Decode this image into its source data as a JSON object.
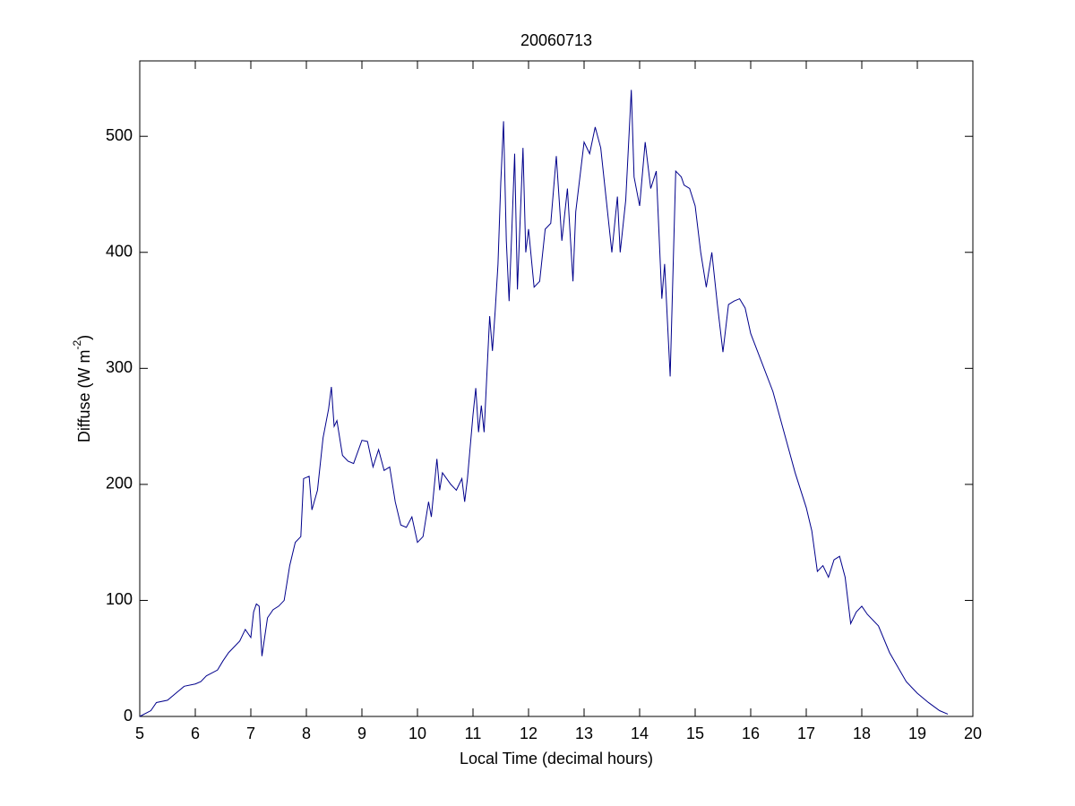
{
  "chart_data": {
    "type": "line",
    "title": "20060713",
    "xlabel": "Local Time (decimal hours)",
    "ylabel": [
      "Diffuse (W m",
      "-2",
      ")"
    ],
    "xlim": [
      5,
      20
    ],
    "ylim": [
      0,
      565
    ],
    "xticks": [
      5,
      6,
      7,
      8,
      9,
      10,
      11,
      12,
      13,
      14,
      15,
      16,
      17,
      18,
      19,
      20
    ],
    "yticks": [
      0,
      100,
      200,
      300,
      400,
      500
    ],
    "grid": false,
    "series": [
      {
        "color": "#00008b",
        "x": [
          5.0,
          5.2,
          5.3,
          5.5,
          5.7,
          5.8,
          6.0,
          6.1,
          6.2,
          6.4,
          6.5,
          6.6,
          6.8,
          6.9,
          7.0,
          7.05,
          7.1,
          7.15,
          7.2,
          7.3,
          7.4,
          7.5,
          7.6,
          7.7,
          7.8,
          7.9,
          7.95,
          8.05,
          8.1,
          8.2,
          8.3,
          8.4,
          8.45,
          8.5,
          8.55,
          8.65,
          8.75,
          8.85,
          9.0,
          9.1,
          9.2,
          9.3,
          9.4,
          9.5,
          9.6,
          9.7,
          9.8,
          9.9,
          10.0,
          10.1,
          10.2,
          10.25,
          10.35,
          10.4,
          10.45,
          10.6,
          10.7,
          10.8,
          10.85,
          10.9,
          11.0,
          11.05,
          11.1,
          11.15,
          11.2,
          11.3,
          11.35,
          11.4,
          11.45,
          11.5,
          11.55,
          11.6,
          11.65,
          11.7,
          11.75,
          11.8,
          11.9,
          11.95,
          12.0,
          12.1,
          12.2,
          12.3,
          12.4,
          12.5,
          12.6,
          12.7,
          12.8,
          12.85,
          13.0,
          13.1,
          13.2,
          13.3,
          13.4,
          13.5,
          13.6,
          13.65,
          13.75,
          13.85,
          13.9,
          14.0,
          14.1,
          14.2,
          14.3,
          14.4,
          14.45,
          14.55,
          14.65,
          14.75,
          14.8,
          14.9,
          15.0,
          15.1,
          15.2,
          15.3,
          15.4,
          15.5,
          15.6,
          15.7,
          15.8,
          15.9,
          16.0,
          16.2,
          16.4,
          16.6,
          16.8,
          17.0,
          17.1,
          17.2,
          17.3,
          17.4,
          17.5,
          17.6,
          17.7,
          17.8,
          17.9,
          18.0,
          18.1,
          18.3,
          18.5,
          18.8,
          19.0,
          19.2,
          19.4,
          19.55
        ],
        "values": [
          0,
          5,
          12,
          14,
          22,
          26,
          28,
          30,
          35,
          40,
          48,
          55,
          65,
          75,
          68,
          90,
          97,
          95,
          52,
          85,
          92,
          95,
          100,
          130,
          150,
          155,
          205,
          207,
          178,
          195,
          240,
          265,
          284,
          250,
          255,
          225,
          220,
          218,
          238,
          237,
          215,
          230,
          212,
          215,
          185,
          165,
          163,
          172,
          150,
          155,
          185,
          172,
          222,
          195,
          210,
          200,
          195,
          205,
          185,
          205,
          260,
          283,
          245,
          268,
          245,
          345,
          315,
          350,
          390,
          460,
          513,
          410,
          358,
          420,
          485,
          368,
          490,
          400,
          420,
          370,
          375,
          420,
          425,
          483,
          410,
          455,
          375,
          435,
          495,
          485,
          508,
          490,
          445,
          400,
          448,
          400,
          445,
          540,
          465,
          440,
          495,
          455,
          470,
          360,
          390,
          293,
          470,
          465,
          458,
          455,
          440,
          400,
          370,
          400,
          355,
          314,
          355,
          358,
          360,
          352,
          330,
          305,
          280,
          245,
          210,
          180,
          160,
          125,
          130,
          120,
          135,
          138,
          120,
          80,
          90,
          95,
          88,
          78,
          55,
          30,
          20,
          12,
          5,
          2
        ]
      }
    ]
  }
}
